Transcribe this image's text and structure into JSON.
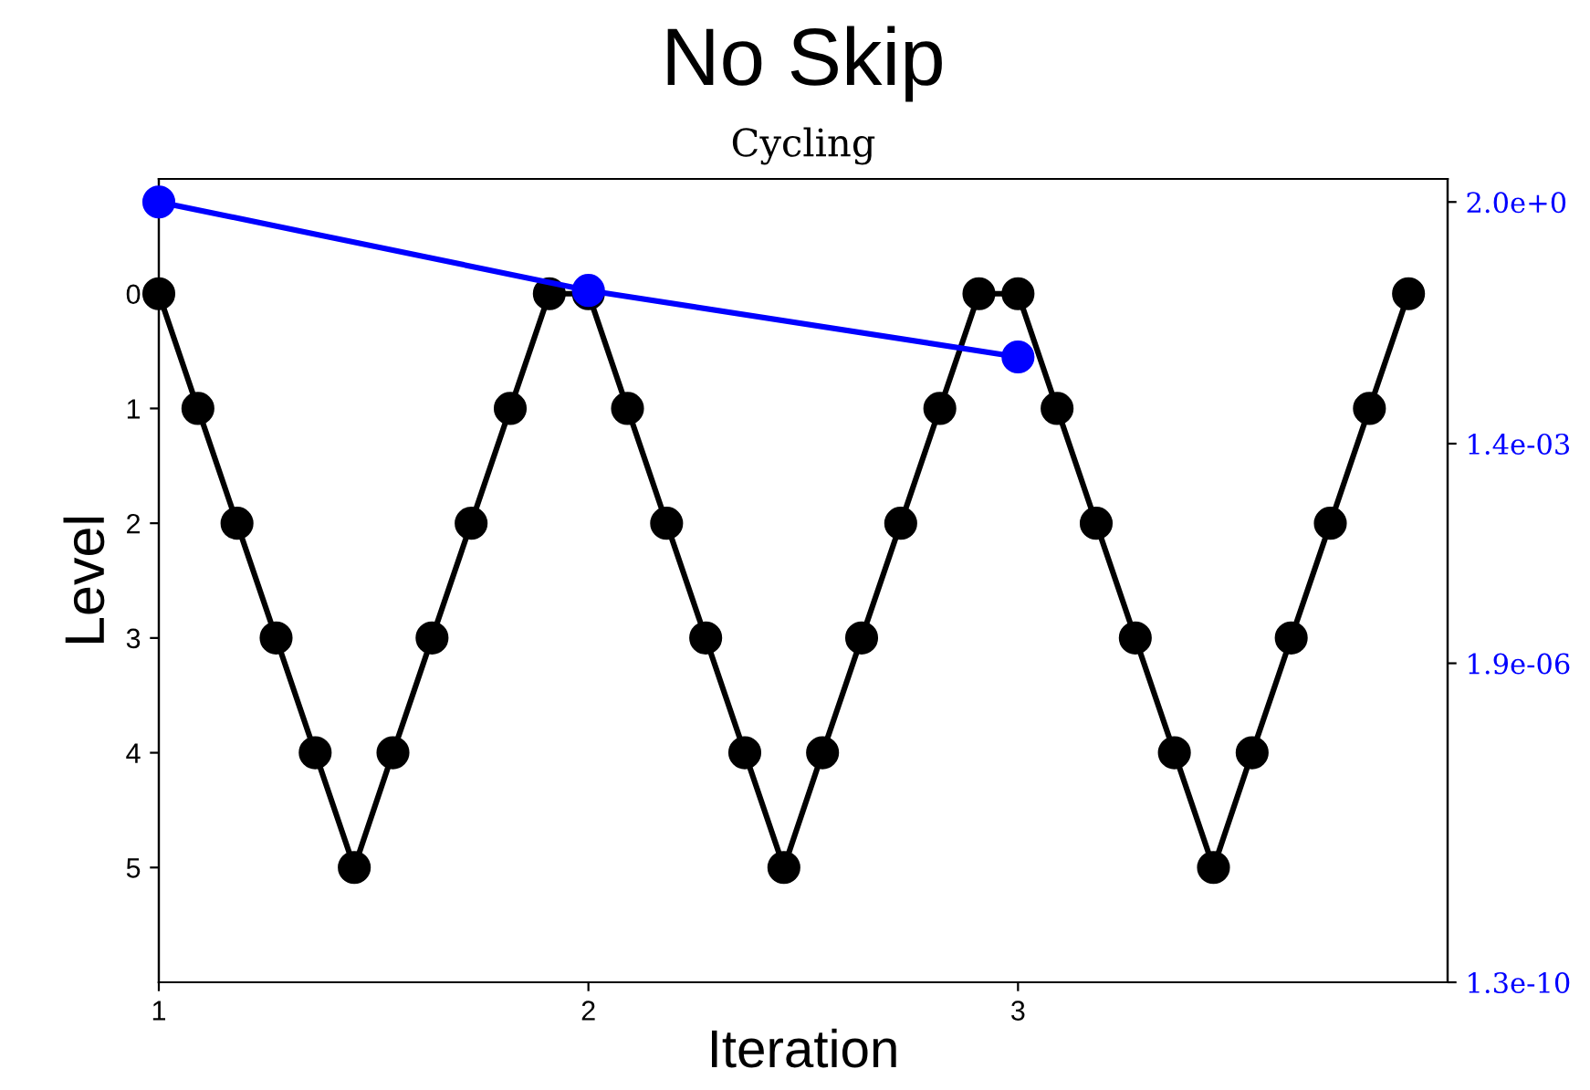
{
  "chart_data": {
    "type": "line",
    "title": "No Skip",
    "subtitle": "Cycling",
    "xlabel": "Iteration",
    "ylabel": "Level",
    "xlim": [
      1,
      4
    ],
    "xticks": [
      1,
      2,
      3
    ],
    "ylim": [
      6,
      -1
    ],
    "yticks": [
      0,
      1,
      2,
      3,
      4,
      5
    ],
    "y2lim": [
      1.3e-10,
      4
    ],
    "y2ticks": [
      {
        "value": 2.0,
        "label": "2.0e+0"
      },
      {
        "value": 0.0014,
        "label": "1.4e-03"
      },
      {
        "value": 1.9e-06,
        "label": "1.9e-06"
      },
      {
        "value": 1.3e-10,
        "label": "1.3e-10"
      }
    ],
    "log": "y2",
    "grid": false,
    "marker": "circle",
    "line_style": "solid",
    "series": [
      {
        "color": "#000000",
        "x": [
          1.0,
          1.091,
          1.182,
          1.273,
          1.364,
          1.455,
          1.545,
          1.636,
          1.727,
          1.818,
          1.909,
          2.0,
          2.091,
          2.182,
          2.273,
          2.364,
          2.455,
          2.545,
          2.636,
          2.727,
          2.818,
          2.909,
          3.0,
          3.091,
          3.182,
          3.273,
          3.364,
          3.455,
          3.545,
          3.636,
          3.727,
          3.818,
          3.909
        ],
        "values": [
          0,
          1,
          2,
          3,
          4,
          5,
          4,
          3,
          2,
          1,
          0,
          0,
          1,
          2,
          3,
          4,
          5,
          4,
          3,
          2,
          1,
          0,
          0,
          1,
          2,
          3,
          4,
          5,
          4,
          3,
          2,
          1,
          0
        ]
      },
      {
        "color": "#0000ff",
        "axis": "y2",
        "x": [
          1,
          2,
          3
        ],
        "values": [
          2.0,
          0.14,
          0.019
        ]
      }
    ]
  }
}
